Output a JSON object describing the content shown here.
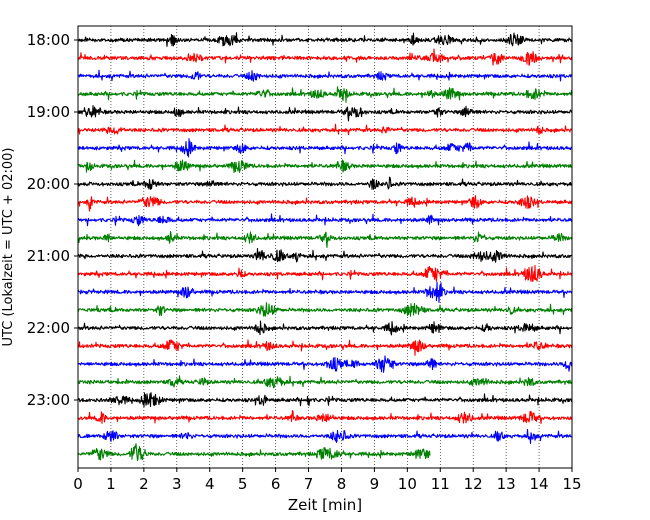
{
  "chart_data": {
    "type": "line",
    "title": "",
    "xlabel": "Zeit  [min]",
    "ylabel": "UTC (Lokalzeit = UTC + 02:00)",
    "xlim": [
      0,
      15
    ],
    "x_ticks": [
      "0",
      "1",
      "2",
      "3",
      "4",
      "5",
      "6",
      "7",
      "8",
      "9",
      "10",
      "11",
      "12",
      "13",
      "14",
      "15"
    ],
    "y_ticks": [
      "18:00",
      "19:00",
      "20:00",
      "21:00",
      "22:00",
      "23:00"
    ],
    "grid": "vertical dotted at each minute",
    "trace_interval_minutes": 15,
    "trace_color_cycle": [
      "#000000",
      "#ff0000",
      "#0000ff",
      "#008000"
    ],
    "series": [
      {
        "start": "18:00",
        "color": "#000000",
        "end_minute": 15
      },
      {
        "start": "18:15",
        "color": "#ff0000",
        "end_minute": 15
      },
      {
        "start": "18:30",
        "color": "#0000ff",
        "end_minute": 15
      },
      {
        "start": "18:45",
        "color": "#008000",
        "end_minute": 15
      },
      {
        "start": "19:00",
        "color": "#000000",
        "end_minute": 15
      },
      {
        "start": "19:15",
        "color": "#ff0000",
        "end_minute": 15
      },
      {
        "start": "19:30",
        "color": "#0000ff",
        "end_minute": 15
      },
      {
        "start": "19:45",
        "color": "#008000",
        "end_minute": 15
      },
      {
        "start": "20:00",
        "color": "#000000",
        "end_minute": 15
      },
      {
        "start": "20:15",
        "color": "#ff0000",
        "end_minute": 15
      },
      {
        "start": "20:30",
        "color": "#0000ff",
        "end_minute": 15
      },
      {
        "start": "20:45",
        "color": "#008000",
        "end_minute": 15
      },
      {
        "start": "21:00",
        "color": "#000000",
        "end_minute": 15
      },
      {
        "start": "21:15",
        "color": "#ff0000",
        "end_minute": 15
      },
      {
        "start": "21:30",
        "color": "#0000ff",
        "end_minute": 15
      },
      {
        "start": "21:45",
        "color": "#008000",
        "end_minute": 15
      },
      {
        "start": "22:00",
        "color": "#000000",
        "end_minute": 15
      },
      {
        "start": "22:15",
        "color": "#ff0000",
        "end_minute": 15
      },
      {
        "start": "22:30",
        "color": "#0000ff",
        "end_minute": 15
      },
      {
        "start": "22:45",
        "color": "#008000",
        "end_minute": 15
      },
      {
        "start": "23:00",
        "color": "#000000",
        "end_minute": 15
      },
      {
        "start": "23:15",
        "color": "#ff0000",
        "end_minute": 15
      },
      {
        "start": "23:30",
        "color": "#0000ff",
        "end_minute": 15
      },
      {
        "start": "23:45",
        "color": "#008000",
        "end_minute": 10.7
      }
    ]
  }
}
